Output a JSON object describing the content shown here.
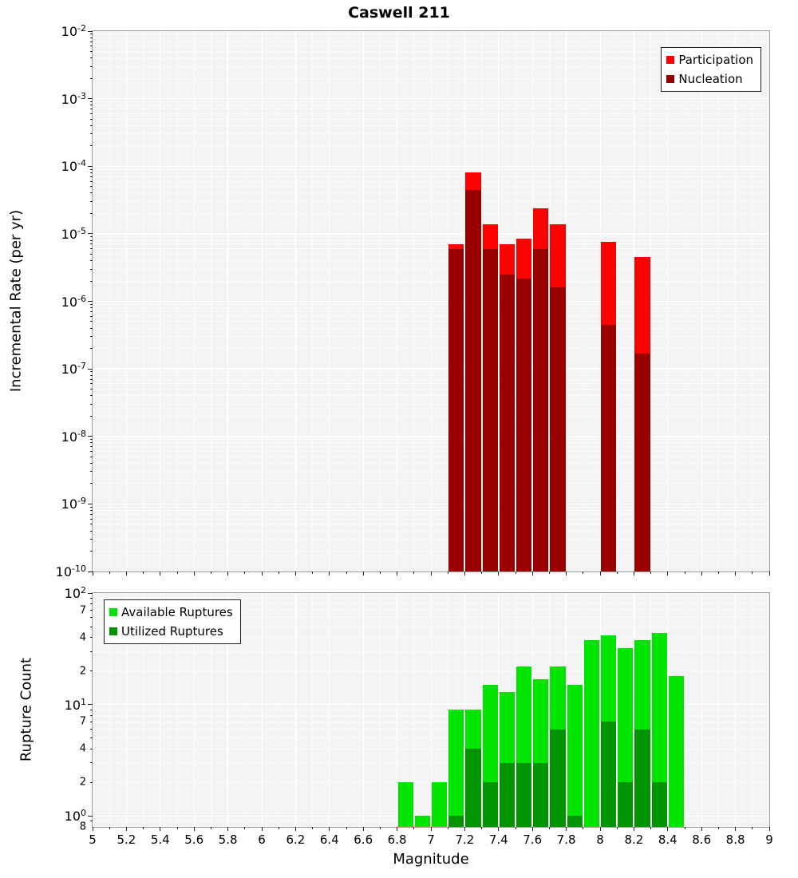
{
  "title": "Caswell 211",
  "xlabel": "Magnitude",
  "chart_data": [
    {
      "type": "bar",
      "panel": "incremental-rate",
      "ylabel": "Incremental Rate (per yr)",
      "x_range": [
        5,
        9
      ],
      "x_tick_step": 0.2,
      "x_minor_step": 0.1,
      "bin_width": 0.1,
      "y_log_range": [
        -10,
        -2
      ],
      "y_decades": [
        -2,
        -3,
        -4,
        -5,
        -6,
        -7,
        -8,
        -9,
        -10
      ],
      "y_minor_labels": [],
      "show_x_labels": false,
      "grid": true,
      "legend_position": "top-right",
      "series": [
        {
          "name": "Participation",
          "color": "#ff0000",
          "x": [
            7.15,
            7.25,
            7.35,
            7.45,
            7.55,
            7.65,
            7.75,
            8.05,
            8.25
          ],
          "y": [
            7e-06,
            8e-05,
            1.4e-05,
            7e-06,
            8.5e-06,
            2.4e-05,
            1.4e-05,
            7.5e-06,
            4.5e-06
          ]
        },
        {
          "name": "Nucleation",
          "color": "#990000",
          "x": [
            7.15,
            7.25,
            7.35,
            7.45,
            7.55,
            7.65,
            7.75,
            8.05,
            8.25
          ],
          "y": [
            6e-06,
            4.5e-05,
            6e-06,
            2.5e-06,
            2.2e-06,
            6e-06,
            1.6e-06,
            4.5e-07,
            1.7e-07
          ]
        }
      ]
    },
    {
      "type": "bar",
      "panel": "rupture-count",
      "ylabel": "Rupture Count",
      "xlabel": "Magnitude",
      "x_range": [
        5,
        9
      ],
      "x_tick_step": 0.2,
      "x_minor_step": 0.1,
      "bin_width": 0.1,
      "y_log_range": [
        -0.0969,
        2
      ],
      "y_decades": [
        0,
        1,
        2
      ],
      "y_minor_labels": [
        [
          0.8,
          "8"
        ],
        [
          2,
          "2"
        ],
        [
          4,
          "4"
        ],
        [
          7,
          "7"
        ],
        [
          20,
          "2"
        ],
        [
          40,
          "4"
        ],
        [
          70,
          "7"
        ]
      ],
      "show_x_labels": true,
      "grid": true,
      "legend_position": "top-left",
      "series": [
        {
          "name": "Available Ruptures",
          "color": "#00e400",
          "x": [
            6.85,
            6.95,
            7.05,
            7.15,
            7.25,
            7.35,
            7.45,
            7.55,
            7.65,
            7.75,
            7.85,
            7.95,
            8.05,
            8.15,
            8.25,
            8.35,
            8.45
          ],
          "y": [
            2,
            1,
            2,
            9,
            9,
            15,
            13,
            22,
            17,
            22,
            15,
            38,
            42,
            32,
            38,
            44,
            18
          ]
        },
        {
          "name": "Utilized Ruptures",
          "color": "#009400",
          "x": [
            7.15,
            7.25,
            7.35,
            7.45,
            7.55,
            7.65,
            7.75,
            7.85,
            8.05,
            8.15,
            8.25,
            8.35
          ],
          "y": [
            1,
            4,
            2,
            3,
            3,
            3,
            6,
            1,
            7,
            2,
            6,
            2
          ]
        }
      ]
    }
  ]
}
